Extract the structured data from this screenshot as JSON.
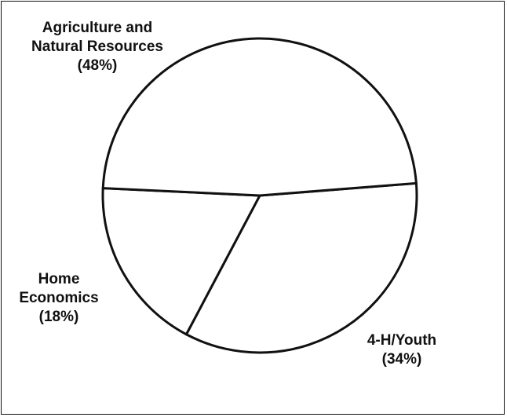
{
  "chart_data": {
    "type": "pie",
    "title": "",
    "slices": [
      {
        "label_lines": [
          "Agriculture and",
          "Natural Resources"
        ],
        "percent_text": "(48%)",
        "value": 48
      },
      {
        "label_lines": [
          "4-H/Youth"
        ],
        "percent_text": "(34%)",
        "value": 34
      },
      {
        "label_lines": [
          "Home",
          "Economics"
        ],
        "percent_text": "(18%)",
        "value": 18
      }
    ],
    "fill_color": "#ffffff",
    "stroke_color": "#111111",
    "legend": "none"
  }
}
